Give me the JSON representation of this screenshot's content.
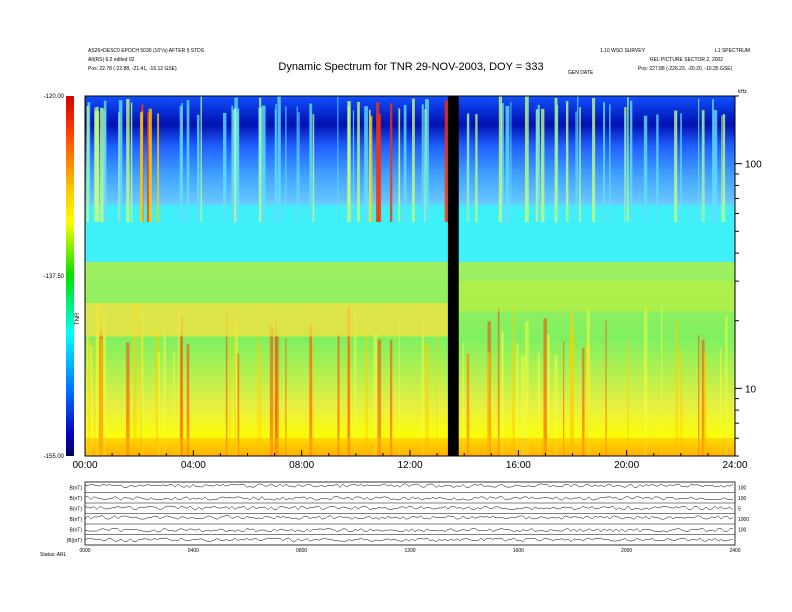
{
  "header": {
    "left_line1": "AS26×DESC0 EPOCH 5030 (10°/s) AFTER § STDS",
    "left_line2": "Alt(RS) 6.2 edited 02",
    "left_line3": "Pos:    22.78 (-22.88, -21.41, -16.12 GSE)",
    "right_line1": "1.10 WSO SURVEY",
    "right_line1b": "L1 SPECTRUM",
    "right_line2": "REL PICTURE SECTOR 2, 2002",
    "right_line3": "Pos:    227.88 (-226.23, -20.20, -16.35 GSE)",
    "center_small": "GEN DATE"
  },
  "chart_data": {
    "type": "heatmap",
    "title": "Dynamic Spectrum for TNR 29-NOV-2003, DOY = 333",
    "xlabel": "",
    "ylabel": "kHz",
    "x_ticks": [
      "00:00",
      "04:00",
      "08:00",
      "12:00",
      "16:00",
      "20:00",
      "24:00"
    ],
    "x_range_hours": [
      0,
      24
    ],
    "y_scale": "log",
    "y_range_khz": [
      5,
      200
    ],
    "y_ticks": [
      "100",
      "10"
    ],
    "colorbar": {
      "labels": [
        "-120.00",
        "-137.50",
        "-155.00"
      ],
      "unit": "TNR",
      "colors": [
        "#d40000",
        "#ff3000",
        "#ffd000",
        "#ffff00",
        "#00e000",
        "#00ffff",
        "#0060ff",
        "#0000c0",
        "#000060"
      ]
    },
    "data_gap_hours": [
      13.4,
      13.8
    ],
    "bands": [
      {
        "name": "low",
        "khz": [
          5,
          18
        ],
        "dominant": "yellow-green"
      },
      {
        "name": "mid",
        "khz": [
          18,
          55
        ],
        "dominant": "cyan"
      },
      {
        "name": "high",
        "khz": [
          55,
          200
        ],
        "dominant": "blue"
      }
    ]
  },
  "lower_panels": {
    "labels": [
      "B(nT)",
      "B(nT)",
      "B(nT)",
      "B(nT)",
      "B(nT)",
      "|B|(nT)"
    ],
    "right_labels": [
      "100",
      "100",
      "5",
      "1000",
      "100"
    ],
    "x_ticks": [
      "0000",
      "0400",
      "0800",
      "1200",
      "1600",
      "2000",
      "2400"
    ],
    "footer": "Status:   ARL"
  }
}
